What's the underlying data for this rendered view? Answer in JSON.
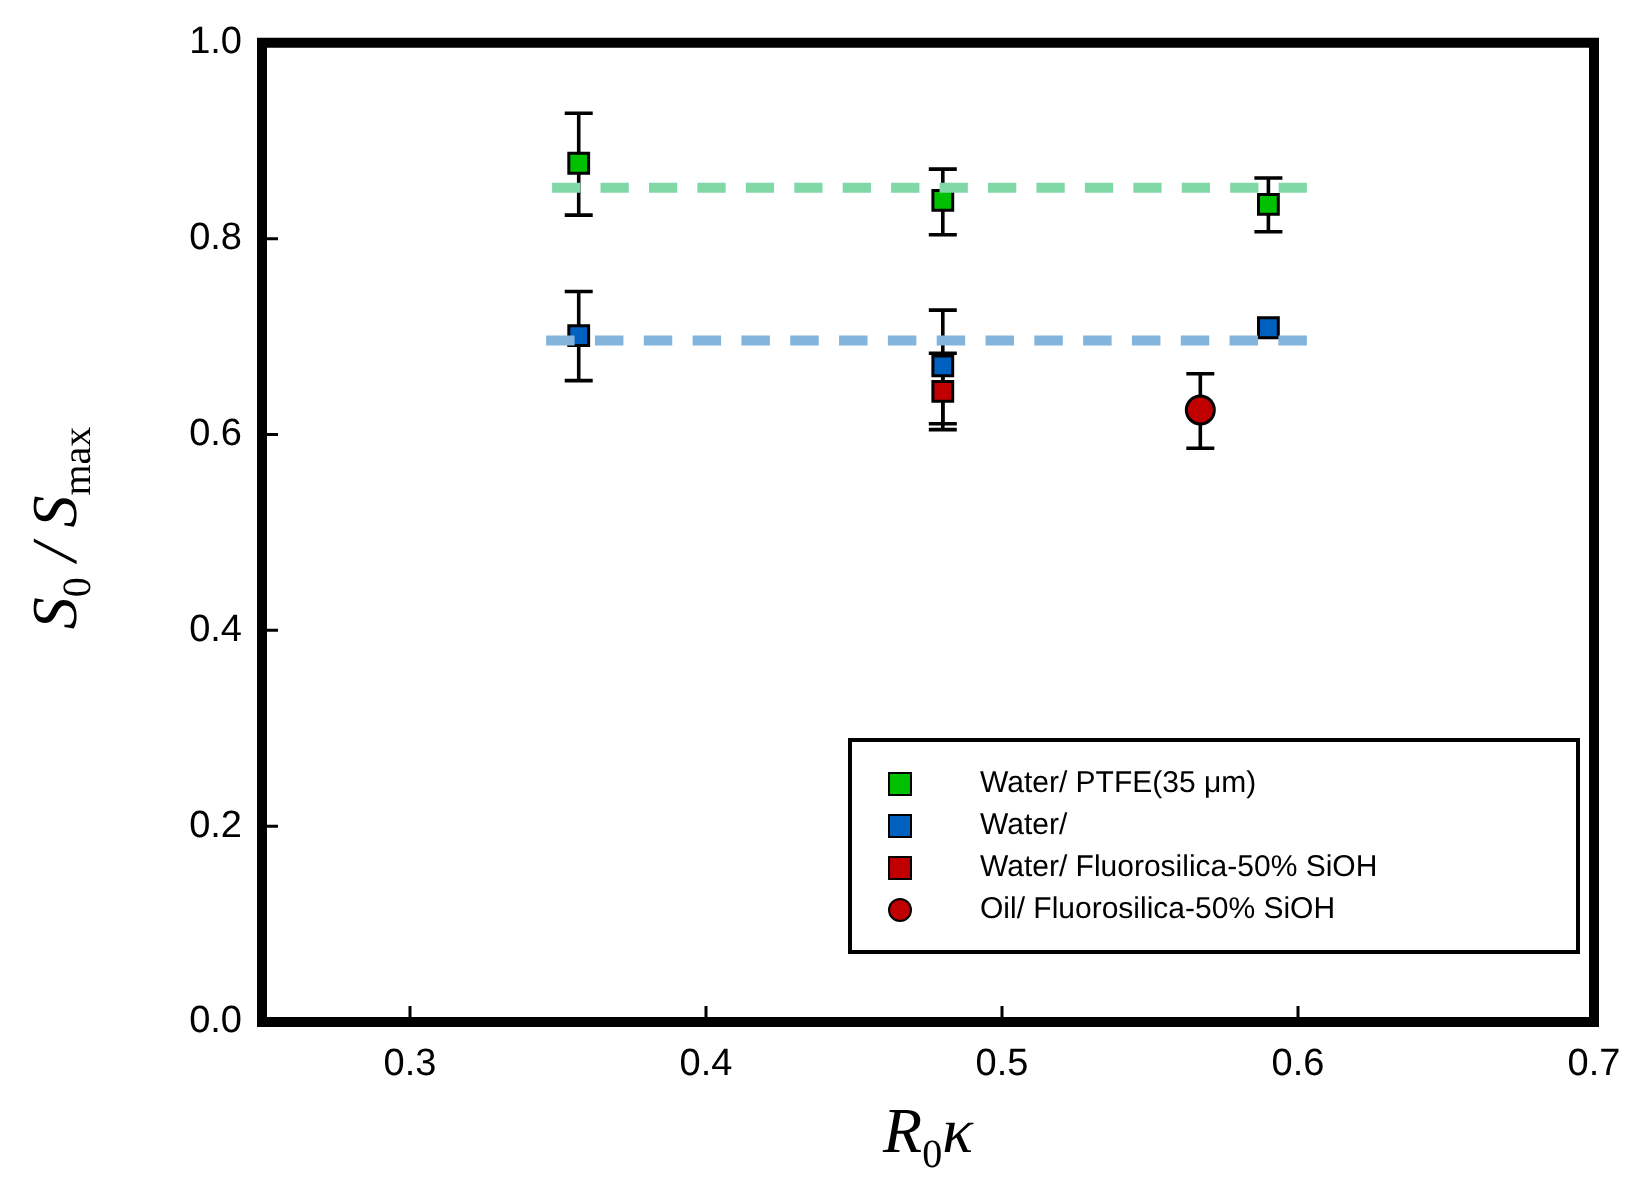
{
  "chart_data": {
    "type": "scatter",
    "xlabel": "R$_{0}$κ",
    "ylabel": "S$_{0}$ / S$_{max}$",
    "xlim": [
      0.25,
      0.7
    ],
    "xticks": [
      0.3,
      0.4,
      0.5,
      0.6,
      0.7
    ],
    "ylim": [
      0,
      1
    ],
    "yticks": [
      {
        "value": 0,
        "label": "0.0"
      },
      0.2,
      0.4,
      0.6,
      0.8,
      {
        "value": 1,
        "label": "1.0"
      }
    ],
    "grid": false,
    "legend": "bottom right",
    "series": [
      {
        "type": "line",
        "color": "#7fd8a6",
        "line_style": "dashed",
        "marker": "none",
        "x": [
          0.348,
          0.603
        ],
        "values": [
          0.852,
          0.852
        ]
      },
      {
        "type": "line",
        "color": "#82b4dc",
        "line_style": "dashed",
        "marker": "none",
        "x": [
          0.346,
          0.603
        ],
        "values": [
          0.696,
          0.696
        ]
      },
      {
        "name": "Water/ PTFE(35 μm)",
        "color": "#00c000",
        "marker": "square",
        "x": [
          0.357,
          0.48,
          0.59
        ],
        "values": [
          0.877,
          0.839,
          0.835
        ],
        "errors": [
          [
            0.824,
            0.928
          ],
          [
            0.804,
            0.871
          ],
          [
            0.807,
            0.862
          ]
        ]
      },
      {
        "name": "Water/",
        "color": "#0060c0",
        "marker": "square",
        "x": [
          0.357,
          0.48,
          0.59
        ],
        "values": [
          0.701,
          0.67,
          0.709
        ],
        "errors": [
          [
            0.655,
            0.746
          ],
          [
            0.611,
            0.727
          ],
          null
        ]
      },
      {
        "name": "Water/ Fluorosilica-50% SiOH",
        "color": "#c00000",
        "marker": "square",
        "x": [
          0.48
        ],
        "values": [
          0.644
        ],
        "errors": [
          0.039
        ]
      },
      {
        "name": "Oil/ Fluorosilica-50% SiOH",
        "color": "#c00000",
        "marker": "circle",
        "x": [
          0.567
        ],
        "values": [
          0.625
        ],
        "errors": [
          [
            0.586,
            0.662
          ]
        ]
      }
    ]
  }
}
